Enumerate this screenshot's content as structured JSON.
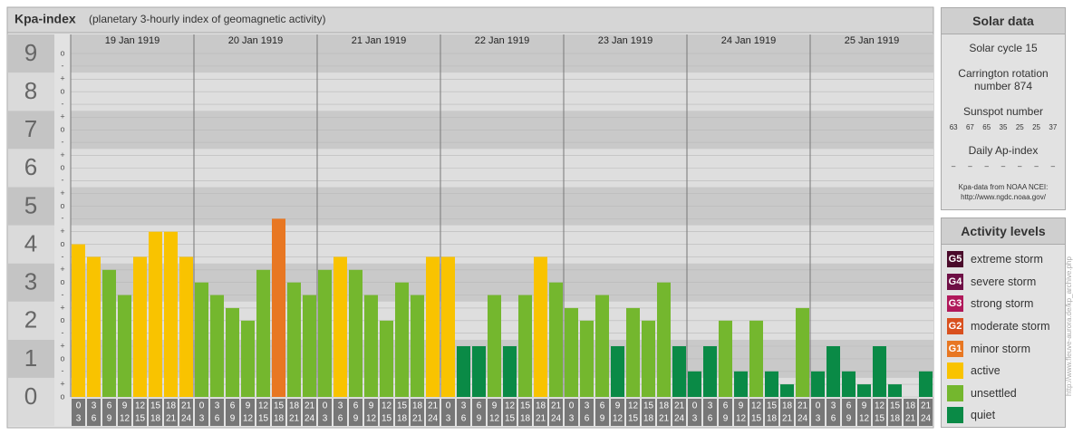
{
  "chart_data": {
    "type": "bar",
    "title": "Kpa-index",
    "subtitle": "(planetary 3-hourly index of geomagnetic activity)",
    "ylim": [
      0,
      9.5
    ],
    "yticks": [
      0,
      1,
      2,
      3,
      4,
      5,
      6,
      7,
      8,
      9
    ],
    "minor_ticks": [
      {
        "value": 0,
        "label": "o"
      },
      {
        "value": 0.33,
        "label": "+"
      },
      {
        "value": 0.67,
        "label": "-"
      },
      {
        "value": 1,
        "label": "o"
      },
      {
        "value": 1.33,
        "label": "+"
      },
      {
        "value": 1.67,
        "label": "-"
      },
      {
        "value": 2,
        "label": "o"
      },
      {
        "value": 2.33,
        "label": "+"
      },
      {
        "value": 2.67,
        "label": "-"
      },
      {
        "value": 3,
        "label": "o"
      },
      {
        "value": 3.33,
        "label": "+"
      },
      {
        "value": 3.67,
        "label": "-"
      },
      {
        "value": 4,
        "label": "o"
      },
      {
        "value": 4.33,
        "label": "+"
      },
      {
        "value": 4.67,
        "label": "-"
      },
      {
        "value": 5,
        "label": "o"
      },
      {
        "value": 5.33,
        "label": "+"
      },
      {
        "value": 5.67,
        "label": "-"
      },
      {
        "value": 6,
        "label": "o"
      },
      {
        "value": 6.33,
        "label": "+"
      },
      {
        "value": 6.67,
        "label": "-"
      },
      {
        "value": 7,
        "label": "o"
      },
      {
        "value": 7.33,
        "label": "+"
      },
      {
        "value": 7.67,
        "label": "-"
      },
      {
        "value": 8,
        "label": "o"
      },
      {
        "value": 8.33,
        "label": "+"
      },
      {
        "value": 8.67,
        "label": "-"
      },
      {
        "value": 9,
        "label": "o"
      }
    ],
    "hours": [
      [
        "0",
        "3"
      ],
      [
        "3",
        "6"
      ],
      [
        "6",
        "9"
      ],
      [
        "9",
        "12"
      ],
      [
        "12",
        "15"
      ],
      [
        "15",
        "18"
      ],
      [
        "18",
        "21"
      ],
      [
        "21",
        "24"
      ]
    ],
    "days": [
      {
        "date": "19 Jan 1919",
        "values": [
          4,
          3.67,
          3.33,
          2.67,
          3.67,
          4.33,
          4.33,
          3.67
        ],
        "colors": [
          "#f9c300",
          "#f9c300",
          "#74b72e",
          "#74b72e",
          "#f9c300",
          "#f9c300",
          "#f9c300",
          "#f9c300"
        ]
      },
      {
        "date": "20 Jan 1919",
        "values": [
          3,
          2.67,
          2.33,
          2,
          3.33,
          4.67,
          3,
          2.67
        ],
        "colors": [
          "#74b72e",
          "#74b72e",
          "#74b72e",
          "#74b72e",
          "#74b72e",
          "#e87722",
          "#74b72e",
          "#74b72e"
        ]
      },
      {
        "date": "21 Jan 1919",
        "values": [
          3.33,
          3.67,
          3.33,
          2.67,
          2,
          3,
          2.67,
          3.67
        ],
        "colors": [
          "#74b72e",
          "#f9c300",
          "#74b72e",
          "#74b72e",
          "#74b72e",
          "#74b72e",
          "#74b72e",
          "#f9c300"
        ]
      },
      {
        "date": "22 Jan 1919",
        "values": [
          3.67,
          1.33,
          1.33,
          2.67,
          1.33,
          2.67,
          3.67,
          3
        ],
        "colors": [
          "#f9c300",
          "#0a8a46",
          "#0a8a46",
          "#74b72e",
          "#0a8a46",
          "#74b72e",
          "#f9c300",
          "#74b72e"
        ]
      },
      {
        "date": "23 Jan 1919",
        "values": [
          2.33,
          2,
          2.67,
          1.33,
          2.33,
          2,
          3,
          1.33
        ],
        "colors": [
          "#74b72e",
          "#74b72e",
          "#74b72e",
          "#0a8a46",
          "#74b72e",
          "#74b72e",
          "#74b72e",
          "#0a8a46"
        ]
      },
      {
        "date": "24 Jan 1919",
        "values": [
          0.67,
          1.33,
          2,
          0.67,
          2,
          0.67,
          0.33,
          2.33
        ],
        "colors": [
          "#0a8a46",
          "#0a8a46",
          "#74b72e",
          "#0a8a46",
          "#74b72e",
          "#0a8a46",
          "#0a8a46",
          "#74b72e"
        ]
      },
      {
        "date": "25 Jan 1919",
        "values": [
          0.67,
          1.33,
          0.67,
          0.33,
          1.33,
          0.33,
          0,
          0.67
        ],
        "colors": [
          "#0a8a46",
          "#0a8a46",
          "#0a8a46",
          "#0a8a46",
          "#0a8a46",
          "#0a8a46",
          "#0a8a46",
          "#0a8a46"
        ]
      }
    ],
    "solar": {
      "title": "Solar data",
      "cycle": "Solar cycle 15",
      "carrington": "Carrington rotation number 874",
      "sunspot_title": "Sunspot number",
      "sunspots": [
        63,
        67,
        65,
        35,
        25,
        25,
        37
      ],
      "ap_title": "Daily Ap-index",
      "ap": [
        "–",
        "–",
        "–",
        "–",
        "–",
        "–",
        "–"
      ],
      "source": "Kpa-data from NOAA NCEI:",
      "source_url": "http://www.ngdc.noaa.gov/"
    },
    "legend": {
      "title": "Activity levels",
      "levels": [
        {
          "code": "G5",
          "label": "extreme storm",
          "color": "#4a0a2a"
        },
        {
          "code": "G4",
          "label": "severe storm",
          "color": "#6e0f45"
        },
        {
          "code": "G3",
          "label": "strong storm",
          "color": "#b0185a"
        },
        {
          "code": "G2",
          "label": "moderate storm",
          "color": "#d9501e"
        },
        {
          "code": "G1",
          "label": "minor storm",
          "color": "#e87722"
        },
        {
          "label": "active",
          "color": "#f9c300"
        },
        {
          "label": "unsettled",
          "color": "#74b72e"
        },
        {
          "label": "quiet",
          "color": "#0a8a46"
        }
      ]
    },
    "credit": "http://www.fleuve-aurora.de/kp_archive.php"
  }
}
